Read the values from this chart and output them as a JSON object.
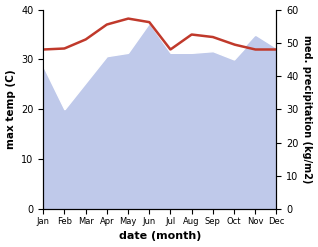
{
  "months": [
    1,
    2,
    3,
    4,
    5,
    6,
    7,
    8,
    9,
    10,
    11,
    12
  ],
  "month_labels": [
    "Jan",
    "Feb",
    "Mar",
    "Apr",
    "May",
    "Jun",
    "Jul",
    "Aug",
    "Sep",
    "Oct",
    "Nov",
    "Dec"
  ],
  "temperature": [
    32.0,
    32.2,
    34.0,
    37.0,
    38.2,
    37.5,
    32.0,
    35.0,
    34.5,
    33.0,
    32.0,
    32.0
  ],
  "precipitation": [
    43.0,
    30.0,
    38.0,
    46.0,
    47.0,
    56.0,
    47.0,
    47.0,
    47.5,
    45.0,
    52.0,
    48.0
  ],
  "temp_color": "#c0392b",
  "precip_fill_color": "#bfc9ea",
  "temp_lw": 1.8,
  "ylabel_left": "max temp (C)",
  "ylabel_right": "med. precipitation (kg/m2)",
  "xlabel": "date (month)",
  "ylim_left": [
    0,
    40
  ],
  "ylim_right": [
    0,
    60
  ],
  "yticks_left": [
    0,
    10,
    20,
    30,
    40
  ],
  "yticks_right": [
    0,
    10,
    20,
    30,
    40,
    50,
    60
  ],
  "bg_color": "#ffffff"
}
